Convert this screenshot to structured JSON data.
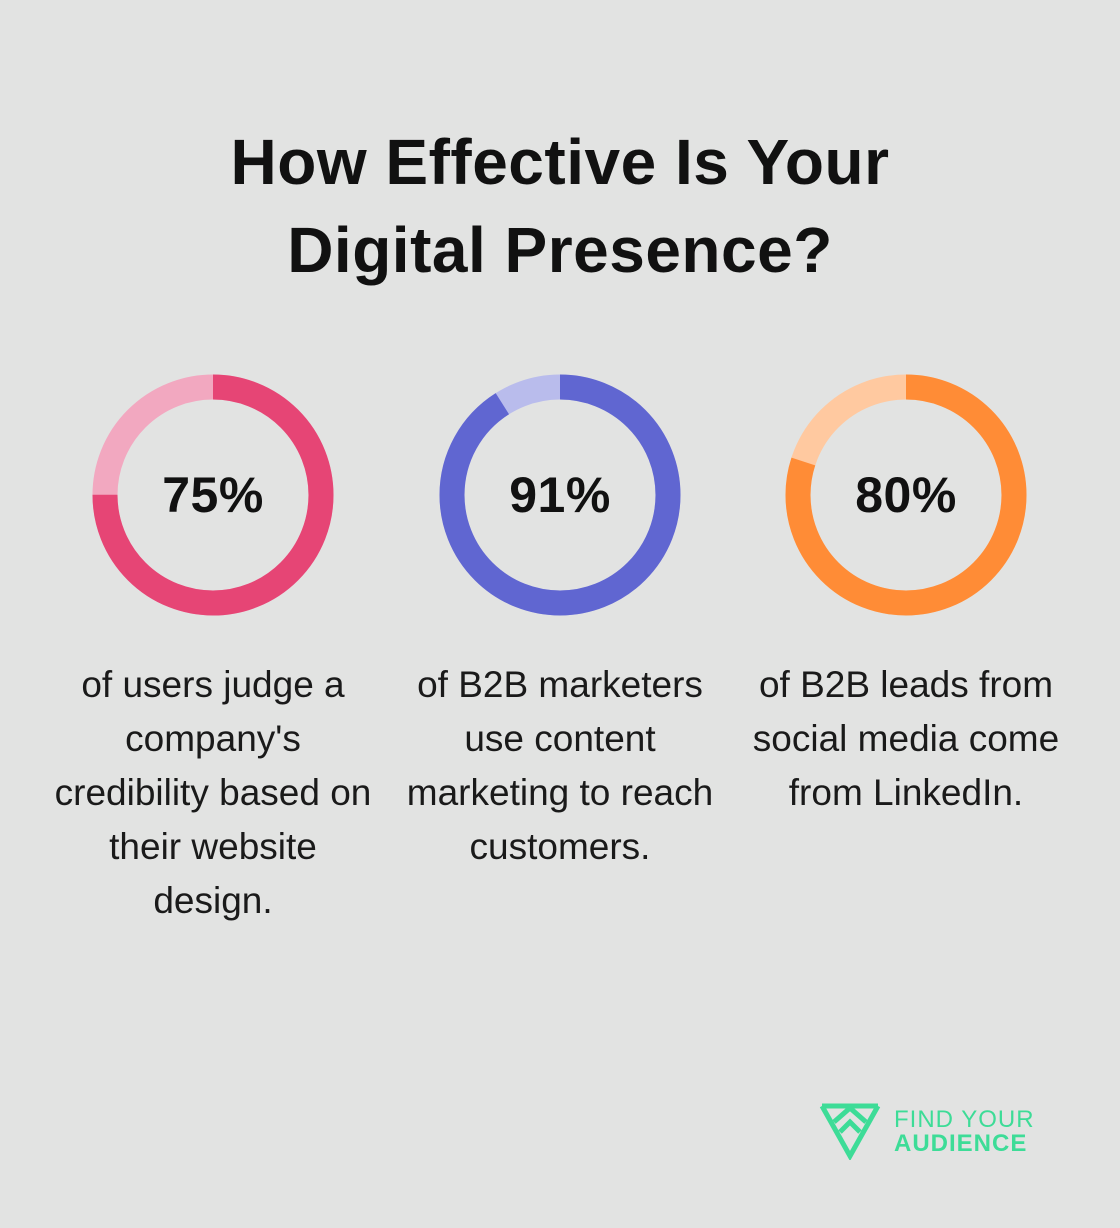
{
  "title_lines": [
    "How Effective Is Your",
    "Digital Presence?"
  ],
  "brand": {
    "line1": "FIND YOUR",
    "line2": "AUDIENCE",
    "color": "#3ddc97"
  },
  "chart_data": {
    "type": "pie",
    "variant": "donut",
    "title": "How Effective Is Your Digital Presence?",
    "items": [
      {
        "value": 75,
        "label": "75%",
        "description": "of users judge a company's credibility based on their website design.",
        "color": "#e64575",
        "track_color": "#f2a8c0"
      },
      {
        "value": 91,
        "label": "91%",
        "description": "of B2B marketers use content marketing to reach customers.",
        "color": "#6066d1",
        "track_color": "#b9bcec"
      },
      {
        "value": 80,
        "label": "80%",
        "description": "of B2B leads from social media come from LinkedIn.",
        "color": "#ff8c36",
        "track_color": "#ffc9a0"
      }
    ]
  }
}
